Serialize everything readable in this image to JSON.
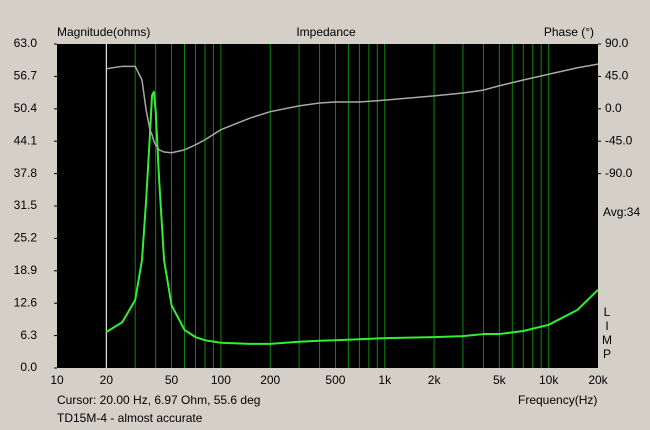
{
  "chart_data": {
    "type": "line",
    "title": "Impedance",
    "ylabel": "Magnitude(ohms)",
    "y2label": "Phase (°)",
    "xlabel": "Frequency(Hz)",
    "cursor_text": "Cursor: 20.00 Hz, 6.97 Ohm, 55.6 deg",
    "footer": "TD15M-4 - almost accurate",
    "avg_label": "Avg:34",
    "side_label": "LIMP",
    "cursor_x": 20,
    "xscale": "log",
    "grid": true,
    "xlim": [
      10,
      20000
    ],
    "xticks": [
      10,
      20,
      50,
      100,
      200,
      500,
      {
        "value": 1000,
        "label": "1k"
      },
      {
        "value": 2000,
        "label": "2k"
      },
      {
        "value": 5000,
        "label": "5k"
      },
      {
        "value": 10000,
        "label": "10k"
      },
      {
        "value": 20000,
        "label": "20k"
      }
    ],
    "xgrid": [
      30,
      40,
      60,
      70,
      80,
      90,
      300,
      400,
      600,
      700,
      800,
      900,
      3000,
      4000,
      6000,
      7000,
      8000,
      9000
    ],
    "ylim": [
      0,
      63
    ],
    "yticks": [
      {
        "value": 0,
        "label": "0.0"
      },
      6.3,
      12.6,
      18.9,
      25.2,
      31.5,
      37.8,
      44.1,
      50.4,
      56.7,
      {
        "value": 63,
        "label": "63.0"
      }
    ],
    "y2lim": [
      -360,
      90
    ],
    "y2ticks": [
      {
        "value": 90,
        "label": "90.0"
      },
      {
        "value": 45,
        "label": "45.0"
      },
      {
        "value": 0,
        "label": "0.0"
      },
      {
        "value": -45,
        "label": "-45.0"
      },
      {
        "value": -90,
        "label": "-90.0"
      }
    ],
    "x": [
      20,
      25,
      30,
      33,
      35,
      37,
      38,
      39,
      40,
      42,
      45,
      50,
      60,
      70,
      80,
      100,
      150,
      200,
      300,
      400,
      500,
      700,
      1000,
      2000,
      3000,
      4000,
      5000,
      7000,
      10000,
      15000,
      20000
    ],
    "series": [
      {
        "name": "Magnitude",
        "color": "#33ee33",
        "values": [
          7.0,
          8.9,
          13.2,
          21,
          32.7,
          46,
          53,
          53.7,
          50,
          36.6,
          21,
          12.2,
          7.4,
          6.0,
          5.4,
          4.9,
          4.7,
          4.7,
          5.1,
          5.3,
          5.4,
          5.6,
          5.8,
          6.0,
          6.2,
          6.6,
          6.6,
          7.2,
          8.4,
          11.3,
          15.2
        ]
      },
      {
        "name": "Phase",
        "color": "#a8a8a8",
        "axis": "y2",
        "values": [
          55.6,
          59,
          59,
          40,
          -2,
          -30,
          -36,
          -45,
          -50,
          -57,
          -60,
          -61,
          -57,
          -50,
          -43,
          -29,
          -13,
          -4,
          4,
          8,
          9.5,
          9.5,
          12,
          18,
          22,
          26,
          32,
          40,
          48,
          57,
          62
        ]
      }
    ]
  }
}
